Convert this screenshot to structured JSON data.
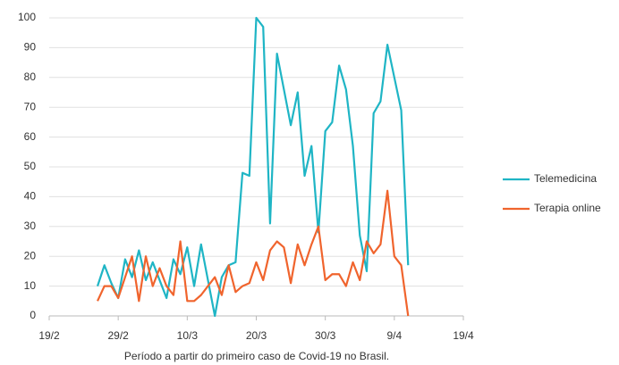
{
  "chart_data": {
    "type": "line",
    "xlabel": "Período a partir do primeiro caso de Covid-19 no Brasil.",
    "x": [
      "26/2",
      "27/2",
      "28/2",
      "29/2",
      "1/3",
      "2/3",
      "3/3",
      "4/3",
      "5/3",
      "6/3",
      "7/3",
      "8/3",
      "9/3",
      "10/3",
      "11/3",
      "12/3",
      "13/3",
      "14/3",
      "15/3",
      "16/3",
      "17/3",
      "18/3",
      "19/3",
      "20/3",
      "21/3",
      "22/3",
      "23/3",
      "24/3",
      "25/3",
      "26/3",
      "27/3",
      "28/3",
      "29/3",
      "30/3",
      "31/3",
      "1/4",
      "2/4",
      "3/4",
      "4/4",
      "5/4",
      "6/4",
      "7/4",
      "8/4",
      "9/4",
      "10/4",
      "11/4"
    ],
    "series": [
      {
        "name": "Telemedicina",
        "color": "#1fb5c5",
        "values": [
          10,
          17,
          11,
          6,
          19,
          13,
          22,
          12,
          18,
          12,
          6,
          19,
          14,
          23,
          10,
          24,
          12,
          0,
          13,
          17,
          18,
          48,
          47,
          100,
          97,
          31,
          88,
          76,
          64,
          75,
          47,
          57,
          28,
          62,
          65,
          84,
          76,
          57,
          27,
          15,
          68,
          72,
          91,
          80,
          69,
          17
        ]
      },
      {
        "name": "Terapia online",
        "color": "#f0642d",
        "values": [
          5,
          10,
          10,
          6,
          13,
          20,
          5,
          20,
          10,
          16,
          10,
          7,
          25,
          5,
          5,
          7,
          10,
          13,
          7,
          17,
          8,
          10,
          11,
          18,
          12,
          22,
          25,
          23,
          11,
          24,
          17,
          24,
          30,
          12,
          14,
          14,
          10,
          18,
          12,
          25,
          21,
          24,
          42,
          20,
          17,
          0
        ]
      }
    ],
    "xlim": [
      "19/2",
      "19/4"
    ],
    "xticks": [
      "19/2",
      "29/2",
      "10/3",
      "20/3",
      "30/3",
      "9/4",
      "19/4"
    ],
    "ylim": [
      0,
      100
    ],
    "yticks": [
      0,
      10,
      20,
      30,
      40,
      50,
      60,
      70,
      80,
      90,
      100
    ],
    "grid": true,
    "legend": "right"
  }
}
